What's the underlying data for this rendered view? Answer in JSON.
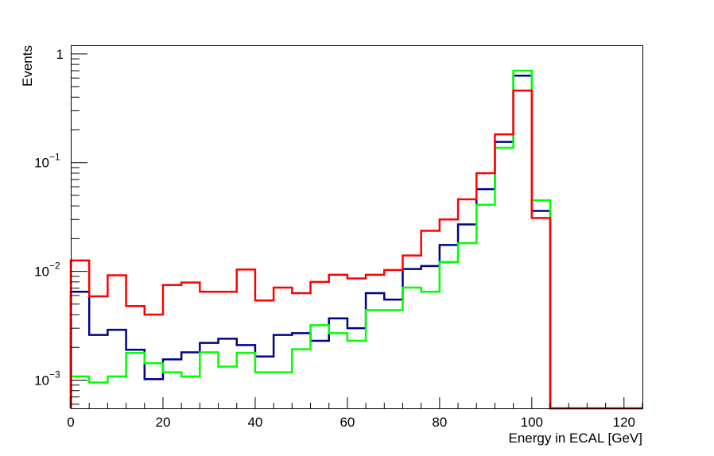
{
  "chart_data": {
    "type": "line",
    "style": "step-histogram",
    "xlabel": "Energy in ECAL [GeV]",
    "ylabel": "Events",
    "xlim": [
      0,
      124
    ],
    "ylim": [
      0.00055,
      1.2
    ],
    "yscale": "log",
    "grid": false,
    "x_ticks": [
      0,
      20,
      40,
      60,
      80,
      100,
      120
    ],
    "x_tick_labels": [
      "0",
      "20",
      "40",
      "60",
      "80",
      "100",
      "120"
    ],
    "y_ticks": [
      {
        "value": 0.001,
        "base": "10",
        "exp": "−3"
      },
      {
        "value": 0.01,
        "base": "10",
        "exp": "−2"
      },
      {
        "value": 0.1,
        "base": "10",
        "exp": "−1"
      },
      {
        "value": 1,
        "base": "1",
        "exp": ""
      }
    ],
    "bin_edges": [
      0,
      4,
      8,
      12,
      16,
      20,
      24,
      28,
      32,
      36,
      40,
      44,
      48,
      52,
      56,
      60,
      64,
      68,
      72,
      76,
      80,
      84,
      88,
      92,
      96,
      100,
      104,
      108,
      112,
      116,
      120,
      124
    ],
    "series": [
      {
        "color": "#00008b",
        "values": [
          0.0065,
          0.0026,
          0.0029,
          0.0019,
          0.00102,
          0.00155,
          0.0018,
          0.0022,
          0.0024,
          0.0021,
          0.00165,
          0.0026,
          0.0027,
          0.0023,
          0.0037,
          0.003,
          0.0063,
          0.0055,
          0.0105,
          0.0112,
          0.0175,
          0.027,
          0.057,
          0.155,
          0.63,
          0.036,
          0,
          0,
          0,
          0,
          0
        ]
      },
      {
        "color": "#00ff00",
        "values": [
          0.00108,
          0.00095,
          0.00108,
          0.00178,
          0.00143,
          0.00118,
          0.00108,
          0.0018,
          0.00133,
          0.00178,
          0.00118,
          0.00118,
          0.00192,
          0.0032,
          0.0027,
          0.0023,
          0.0044,
          0.0044,
          0.0071,
          0.0065,
          0.0122,
          0.0182,
          0.041,
          0.137,
          0.7,
          0.045,
          0,
          0,
          0,
          0,
          0
        ]
      },
      {
        "color": "#ff0000",
        "values": [
          0.0126,
          0.0059,
          0.0092,
          0.0048,
          0.004,
          0.0075,
          0.0079,
          0.0065,
          0.0065,
          0.0104,
          0.0054,
          0.0071,
          0.0063,
          0.008,
          0.0093,
          0.0086,
          0.0093,
          0.0103,
          0.014,
          0.0236,
          0.03,
          0.046,
          0.08,
          0.182,
          0.46,
          0.031,
          0,
          0,
          0,
          0,
          0
        ]
      }
    ]
  }
}
